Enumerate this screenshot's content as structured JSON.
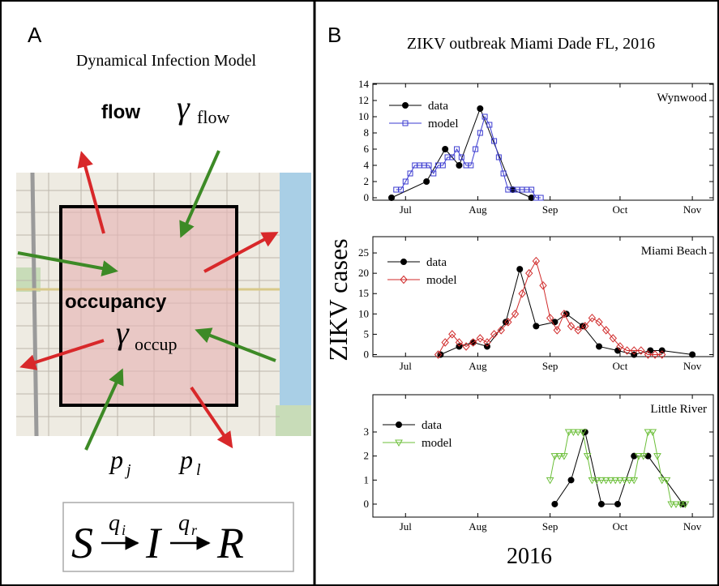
{
  "panel_a": {
    "label": "A",
    "title": "Dynamical Infection Model",
    "flow": "flow",
    "gamma_flow": "γ",
    "gamma_flow_sub": "flow",
    "occupancy": "occupancy",
    "gamma_occup": "γ",
    "gamma_occup_sub": "occup",
    "p_j": "p",
    "p_j_sub": "j",
    "p_l": "p",
    "p_l_sub": "l",
    "formula": {
      "s": "S",
      "q_i": "q",
      "q_i_sub": "i",
      "i": "I",
      "q_r": "q",
      "q_r_sub": "r",
      "r": "R"
    }
  },
  "panel_b": {
    "label": "B",
    "title": "ZIKV outbreak Miami Dade FL, 2016",
    "ylabel": "ZIKV cases",
    "xlabel": "2016"
  },
  "chart_data": [
    {
      "type": "line",
      "title": "Wynwood",
      "xlim": [
        -14,
        132
      ],
      "xticks": [
        {
          "value": 0,
          "label": "Jul"
        },
        {
          "value": 31,
          "label": "Aug"
        },
        {
          "value": 62,
          "label": "Sep"
        },
        {
          "value": 92,
          "label": "Oct"
        },
        {
          "value": 123,
          "label": "Nov"
        }
      ],
      "ylim": [
        -0.3,
        14.1
      ],
      "yticks": [
        0,
        2,
        4,
        6,
        8,
        10,
        12,
        14
      ],
      "series": [
        {
          "name": "data",
          "color": "#000000",
          "marker": "circle",
          "x": [
            -6,
            9,
            17,
            23,
            32,
            46,
            54
          ],
          "values": [
            0,
            2,
            6,
            4,
            11,
            1,
            0
          ]
        },
        {
          "name": "model",
          "color": "#3a3ad0",
          "marker": "square",
          "x": [
            -4,
            -2,
            0,
            2,
            4,
            6,
            8,
            10,
            12,
            14,
            16,
            18,
            20,
            22,
            24,
            26,
            28,
            30,
            32,
            34,
            36,
            38,
            40,
            42,
            44,
            46,
            48,
            50,
            52,
            54,
            56,
            58
          ],
          "values": [
            1,
            1,
            2,
            3,
            4,
            4,
            4,
            4,
            3,
            4,
            4,
            5,
            5,
            6,
            5,
            4,
            4,
            6,
            8,
            10,
            9,
            7,
            5,
            3,
            1,
            1,
            1,
            1,
            1,
            1,
            0,
            0
          ]
        }
      ]
    },
    {
      "type": "line",
      "title": "Miami Beach",
      "xlim": [
        -14,
        132
      ],
      "xticks": [
        {
          "value": 0,
          "label": "Jul"
        },
        {
          "value": 31,
          "label": "Aug"
        },
        {
          "value": 62,
          "label": "Sep"
        },
        {
          "value": 92,
          "label": "Oct"
        },
        {
          "value": 123,
          "label": "Nov"
        }
      ],
      "ylim": [
        -0.5,
        29
      ],
      "yticks": [
        0,
        5,
        10,
        15,
        20,
        25
      ],
      "series": [
        {
          "name": "data",
          "color": "#000000",
          "marker": "circle",
          "x": [
            15,
            23,
            29,
            35,
            43,
            49,
            56,
            64,
            69,
            76,
            83,
            91,
            98,
            105,
            110,
            123
          ],
          "values": [
            0,
            2,
            3,
            2,
            8,
            21,
            7,
            8,
            10,
            7,
            2,
            1,
            0,
            1,
            1,
            0
          ]
        },
        {
          "name": "model",
          "color": "#d02a2a",
          "marker": "diamond",
          "x": [
            14,
            17,
            20,
            23,
            26,
            29,
            32,
            35,
            38,
            41,
            44,
            47,
            50,
            53,
            56,
            59,
            62,
            65,
            68,
            71,
            74,
            77,
            80,
            83,
            86,
            89,
            92,
            95,
            98,
            101,
            104,
            107,
            110
          ],
          "values": [
            0,
            3,
            5,
            3,
            2,
            3,
            4,
            3,
            5,
            6,
            8,
            10,
            15,
            20,
            23,
            17,
            9,
            6,
            10,
            7,
            6,
            7,
            9,
            8,
            6,
            4,
            2,
            1,
            1,
            1,
            0,
            0,
            0
          ]
        }
      ]
    },
    {
      "type": "line",
      "title": "Little River",
      "xlim": [
        -14,
        132
      ],
      "xticks": [
        {
          "value": 0,
          "label": "Jul"
        },
        {
          "value": 31,
          "label": "Aug"
        },
        {
          "value": 62,
          "label": "Sep"
        },
        {
          "value": 92,
          "label": "Oct"
        },
        {
          "value": 123,
          "label": "Nov"
        }
      ],
      "ylim": [
        -0.54,
        4.55
      ],
      "yticks": [
        0,
        1,
        2,
        3
      ],
      "series": [
        {
          "name": "data",
          "color": "#000000",
          "marker": "circle",
          "x": [
            64,
            71,
            77,
            84,
            91,
            98,
            104,
            119
          ],
          "values": [
            0,
            1,
            3,
            0,
            0,
            2,
            2,
            0
          ]
        },
        {
          "name": "model",
          "color": "#6cbf3a",
          "marker": "triangle",
          "x": [
            62,
            64,
            66,
            68,
            70,
            72,
            74,
            76,
            78,
            80,
            82,
            84,
            86,
            88,
            90,
            92,
            94,
            96,
            98,
            100,
            102,
            104,
            106,
            108,
            110,
            112,
            114,
            116,
            118,
            120
          ],
          "values": [
            1,
            2,
            2,
            2,
            3,
            3,
            3,
            3,
            2,
            1,
            1,
            1,
            1,
            1,
            1,
            1,
            1,
            1,
            1,
            2,
            2,
            3,
            3,
            2,
            1,
            1,
            0,
            0,
            0,
            0
          ]
        }
      ]
    }
  ]
}
